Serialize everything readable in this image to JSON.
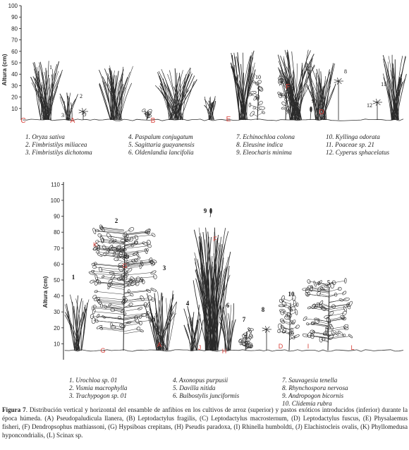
{
  "top_panel": {
    "y_axis_title": "Altura (cm)",
    "y_ticks": [
      "10",
      "20",
      "30",
      "40",
      "50",
      "60",
      "70",
      "80",
      "90",
      "100"
    ],
    "plant_numbers": [
      "1",
      "2",
      "3",
      "4",
      "5",
      "6",
      "7",
      "8",
      "9",
      "10",
      "11",
      "12"
    ],
    "amphibian_letters": [
      "C",
      "A",
      "B",
      "E",
      "F",
      "D"
    ],
    "legend_columns": [
      [
        "1. Oryza sativa",
        "2. Fimbristilys miliacea",
        "3. Fimbristilys dichotoma"
      ],
      [
        "4. Paspalum conjugatum",
        "5. Sagittaria guayanensis",
        "6. Oldenlandia lancifolia"
      ],
      [
        "7. Echinochloa colona",
        "8. Eleusine indica",
        "9. Eleocharis minima"
      ],
      [
        "10. Kyllinga odorata",
        "11. Poaceae sp. 21",
        "12. Cyperus sphacelatus"
      ]
    ]
  },
  "bottom_panel": {
    "y_axis_title": "Altura (cm)",
    "y_ticks": [
      "10",
      "20",
      "30",
      "40",
      "50",
      "60",
      "70",
      "80",
      "90",
      "100",
      "110"
    ],
    "plant_numbers": [
      "1",
      "2",
      "3",
      "4",
      "5",
      "6",
      "7",
      "8",
      "9",
      "10"
    ],
    "amphibian_letters": [
      "K",
      "G",
      "G",
      "A",
      "F",
      "J",
      "H",
      "D",
      "I",
      "L"
    ],
    "legend_columns": [
      [
        "1. Urochloa sp. 01",
        "2. Vismia macrophylla",
        "3. Trachypogon sp. 01"
      ],
      [
        "4. Axonopus purpusii",
        "5. Davilla nitida",
        "6. Bulbostylis junciformis"
      ],
      [
        "7. Sauvagesia tenella",
        "8. Rhynchospora nervosa",
        "9. Andropogon bicornis",
        "10. Clidemia rubra"
      ]
    ]
  },
  "caption": {
    "label": "Figura 7",
    "text": ". Distribución vertical y horizontal del ensamble de anfibios en los cultivos de arroz (superior) y pastos exóticos introducidos (inferior) durante la época húmeda. (A) Pseudopaludicula llanera, (B) Leptodactylus fragilis, (C) Leptodactylus macrosternum, (D) Leptodactylus fuscus, (E) Physalaemus fisheri, (F) Dendropsophus mathiassoni, (G) Hypsiboas crepitans, (H) Pseudis paradoxa, (I) Rhinella humboldti, (J) Elachistocleis ovalis, (K) Phyllomedusa hyponcondrialis, (L) Scinax sp."
  },
  "colors": {
    "amphibian_label": "#d9413a",
    "line": "#222222"
  }
}
